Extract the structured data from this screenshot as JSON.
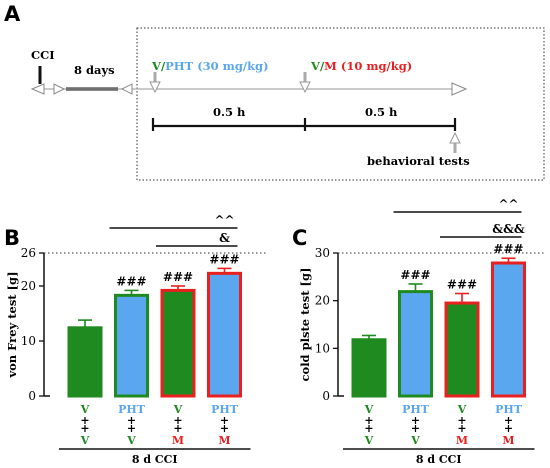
{
  "panel_a": {
    "letter": "A",
    "cci": "CCI",
    "days": "8 days",
    "drug1_v": "V",
    "drug1_slash": "/",
    "drug1_name": "PHT (30 mg/kg)",
    "drug2_v": "V",
    "drug2_slash": "/",
    "drug2_name": "M (10 mg/kg)",
    "interval1": "0.5 h",
    "interval2": "0.5 h",
    "tests": "behavioral tests"
  },
  "colors": {
    "green": "#1f8a1f",
    "blue": "#5aa7f0",
    "red": "#e8201f",
    "dark_green": "#0a7a0a"
  },
  "chart_data": [
    {
      "type": "bar",
      "panel": "B",
      "ylabel": "von Frey test [g]",
      "ylim": [
        0,
        26
      ],
      "yticks": [
        0,
        10,
        20,
        26
      ],
      "dotted_reference": 26,
      "xlabel": "8 d CCI",
      "categories": [
        {
          "top": "V",
          "plus1": "+",
          "plus2": "+",
          "bottom": "V",
          "top_color": "green",
          "bottom_color": "green"
        },
        {
          "top": "PHT",
          "plus1": "+",
          "plus2": "+",
          "bottom": "V",
          "top_color": "blue",
          "bottom_color": "green"
        },
        {
          "top": "V",
          "plus1": "+",
          "plus2": "+",
          "bottom": "M",
          "top_color": "green",
          "bottom_color": "red"
        },
        {
          "top": "PHT",
          "plus1": "+",
          "plus2": "+",
          "bottom": "M",
          "top_color": "blue",
          "bottom_color": "red"
        }
      ],
      "values": [
        12.4,
        18.3,
        19.2,
        22.3
      ],
      "errors": [
        1.4,
        0.9,
        0.8,
        0.9
      ],
      "fill": [
        "green",
        "blue",
        "green",
        "blue"
      ],
      "edge": [
        "green",
        "green",
        "red",
        "red"
      ],
      "significance": [
        "",
        "###",
        "###",
        "###"
      ],
      "comparisons": [
        {
          "label": "^^",
          "from": 1,
          "to": 3
        },
        {
          "label": "&",
          "from": 2,
          "to": 3
        }
      ]
    },
    {
      "type": "bar",
      "panel": "C",
      "ylabel": "cold plste test [g]",
      "ylim": [
        0,
        30
      ],
      "yticks": [
        0,
        10,
        20,
        30
      ],
      "dotted_reference": 30,
      "xlabel": "8 d CCI",
      "categories": [
        {
          "top": "V",
          "plus1": "+",
          "plus2": "+",
          "bottom": "V",
          "top_color": "green",
          "bottom_color": "green"
        },
        {
          "top": "PHT",
          "plus1": "+",
          "plus2": "+",
          "bottom": "V",
          "top_color": "blue",
          "bottom_color": "green"
        },
        {
          "top": "V",
          "plus1": "+",
          "plus2": "+",
          "bottom": "M",
          "top_color": "green",
          "bottom_color": "red"
        },
        {
          "top": "PHT",
          "plus1": "+",
          "plus2": "+",
          "bottom": "M",
          "top_color": "blue",
          "bottom_color": "red"
        }
      ],
      "values": [
        11.8,
        21.9,
        19.5,
        27.9
      ],
      "errors": [
        0.9,
        1.6,
        2.0,
        1.0
      ],
      "fill": [
        "green",
        "blue",
        "green",
        "blue"
      ],
      "edge": [
        "green",
        "green",
        "red",
        "red"
      ],
      "significance": [
        "",
        "###",
        "###",
        "###"
      ],
      "comparisons": [
        {
          "label": "^^",
          "from": 1,
          "to": 3
        },
        {
          "label": "&&&",
          "from": 2,
          "to": 3
        }
      ]
    }
  ]
}
